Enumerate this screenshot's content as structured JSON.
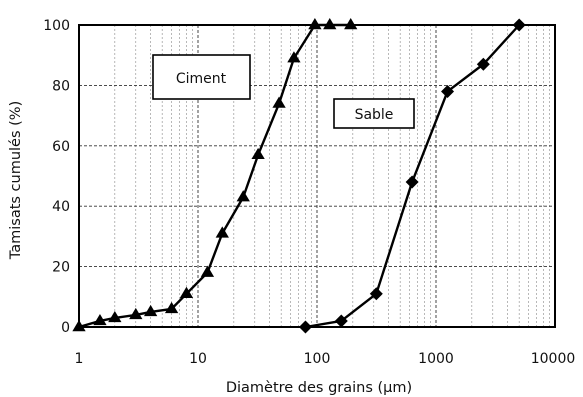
{
  "chart_data": {
    "type": "line",
    "xscale": "log",
    "xlim": [
      1,
      10000
    ],
    "ylim": [
      0,
      100
    ],
    "xlabel": "Diamètre des grains (µm)",
    "ylabel": "Tamisats cumulés (%)",
    "xticks": [
      "1",
      "10",
      "100",
      "1000",
      "10000"
    ],
    "yticks": [
      "0",
      "20",
      "40",
      "60",
      "80",
      "100"
    ],
    "grid": true,
    "series": [
      {
        "name": "Ciment",
        "marker": "triangle",
        "x": [
          1,
          1.5,
          2,
          3,
          4,
          6,
          8,
          12,
          16,
          24,
          32,
          48,
          64,
          96,
          128,
          192
        ],
        "y": [
          0,
          2,
          3,
          4,
          5,
          6,
          11,
          18,
          31,
          43,
          57,
          74,
          89,
          100,
          100,
          100
        ]
      },
      {
        "name": "Sable",
        "marker": "diamond",
        "x": [
          80,
          160,
          315,
          630,
          1250,
          2500,
          5000
        ],
        "y": [
          0,
          2,
          11,
          48,
          78,
          87,
          100
        ]
      }
    ],
    "color": "#000000"
  }
}
